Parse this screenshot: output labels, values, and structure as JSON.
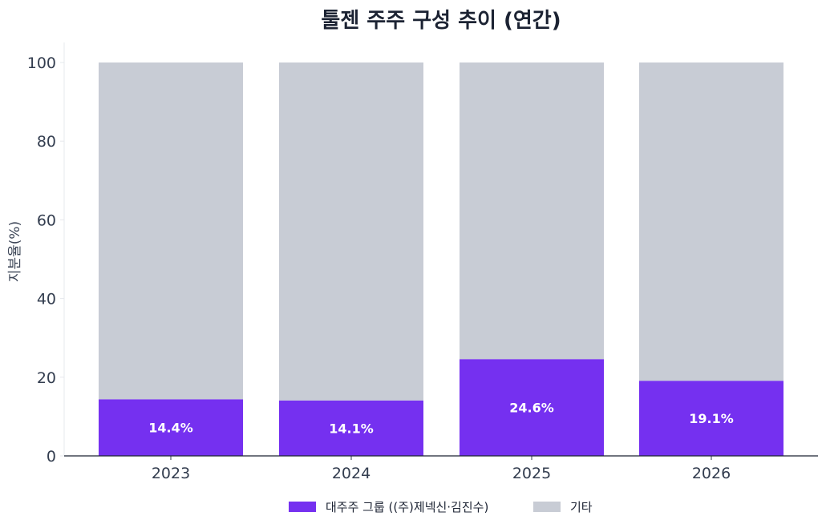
{
  "chart_data": {
    "type": "bar",
    "stacked": true,
    "title": "툴젠 주주 구성 추이 (연간)",
    "xlabel": "",
    "ylabel": "지분율(%)",
    "ylim": [
      0,
      100
    ],
    "yticks": [
      "0",
      "20",
      "40",
      "60",
      "80",
      "100"
    ],
    "categories": [
      "2023",
      "2024",
      "2025",
      "2026"
    ],
    "series": [
      {
        "name": "대주주 그룹 ((주)제넥신·김진수)",
        "color": "#7530f0",
        "values": [
          14.4,
          14.1,
          24.6,
          19.1
        ],
        "labels": [
          "14.4%",
          "14.1%",
          "24.6%",
          "19.1%"
        ]
      },
      {
        "name": "기타",
        "color": "#c8ccd5",
        "values": [
          85.6,
          85.9,
          75.4,
          80.9
        ]
      }
    ],
    "grid": false,
    "legend": "bottom-center"
  }
}
